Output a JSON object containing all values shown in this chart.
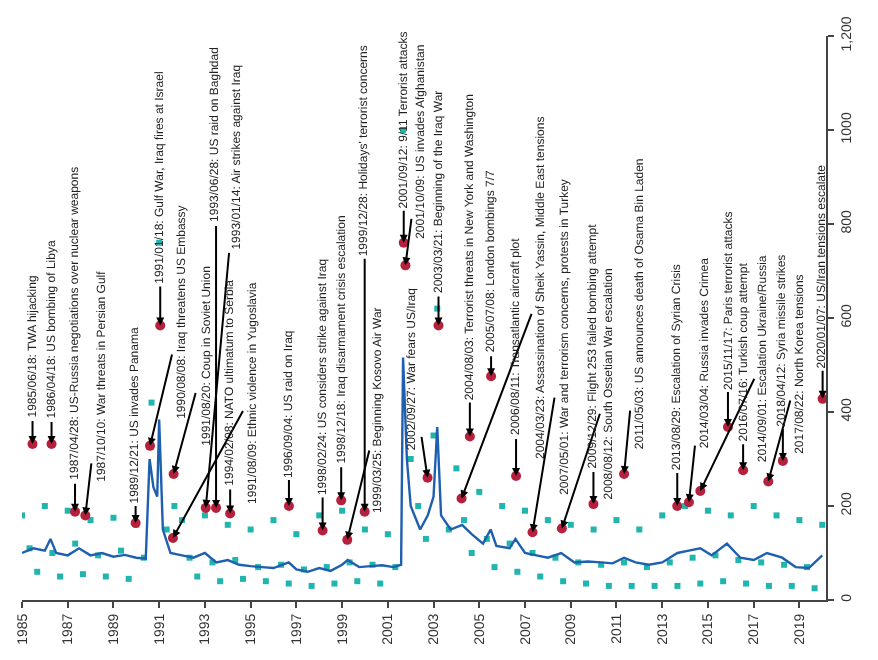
{
  "chart_data": {
    "type": "line",
    "xlim": [
      "1985-01-01",
      "2020-03-01"
    ],
    "xticks": [
      {
        "value": "1985-01-01",
        "label": "1985"
      },
      {
        "value": "1987-01-01",
        "label": "1987"
      },
      {
        "value": "1989-01-01",
        "label": "1989"
      },
      {
        "value": "1991-01-01",
        "label": "1991"
      },
      {
        "value": "1993-01-01",
        "label": "1993"
      },
      {
        "value": "1995-01-01",
        "label": "1995"
      },
      {
        "value": "1997-01-01",
        "label": "1997"
      },
      {
        "value": "1999-01-01",
        "label": "1999"
      },
      {
        "value": "2001-01-01",
        "label": "2001"
      },
      {
        "value": "2003-01-01",
        "label": "2003"
      },
      {
        "value": "2005-01-01",
        "label": "2005"
      },
      {
        "value": "2007-01-01",
        "label": "2007"
      },
      {
        "value": "2009-01-01",
        "label": "2009"
      },
      {
        "value": "2011-01-01",
        "label": "2011"
      },
      {
        "value": "2013-01-01",
        "label": "2013"
      },
      {
        "value": "2015-01-01",
        "label": "2015"
      },
      {
        "value": "2017-01-01",
        "label": "2017"
      },
      {
        "value": "2019-01-01",
        "label": "2019"
      }
    ],
    "ylim": [
      0,
      1200
    ],
    "yticks": [
      0,
      200,
      400,
      600,
      800,
      1000,
      {
        "value": 1200,
        "label": "1,200"
      }
    ],
    "series": [
      {
        "type": "scatter",
        "marker": "square",
        "color": "#20b5ad",
        "x": [
          "1985-01",
          "1985-05",
          "1985-09",
          "1986-01",
          "1986-05",
          "1986-09",
          "1987-01",
          "1987-05",
          "1987-09",
          "1988-01",
          "1988-05",
          "1988-09",
          "1989-01",
          "1989-05",
          "1989-09",
          "1990-01",
          "1990-05",
          "1990-09",
          "1991-01",
          "1991-05",
          "1991-09",
          "1992-01",
          "1992-05",
          "1992-09",
          "1993-01",
          "1993-05",
          "1993-09",
          "1994-01",
          "1994-05",
          "1994-09",
          "1995-01",
          "1995-05",
          "1995-09",
          "1996-01",
          "1996-05",
          "1996-09",
          "1997-01",
          "1997-05",
          "1997-09",
          "1998-01",
          "1998-05",
          "1998-09",
          "1999-01",
          "1999-05",
          "1999-09",
          "2000-01",
          "2000-05",
          "2000-09",
          "2001-01",
          "2001-05",
          "2001-09",
          "2002-01",
          "2002-05",
          "2002-09",
          "2003-01",
          "2003-03",
          "2003-09",
          "2004-01",
          "2004-05",
          "2004-09",
          "2005-01",
          "2005-05",
          "2005-09",
          "2006-01",
          "2006-05",
          "2006-09",
          "2007-01",
          "2007-05",
          "2007-09",
          "2008-01",
          "2008-05",
          "2008-09",
          "2009-01",
          "2009-05",
          "2009-09",
          "2010-01",
          "2010-05",
          "2010-09",
          "2011-01",
          "2011-05",
          "2011-09",
          "2012-01",
          "2012-05",
          "2012-09",
          "2013-01",
          "2013-05",
          "2013-09",
          "2014-01",
          "2014-05",
          "2014-09",
          "2015-01",
          "2015-05",
          "2015-09",
          "2016-01",
          "2016-05",
          "2016-09",
          "2017-01",
          "2017-05",
          "2017-09",
          "2018-01",
          "2018-05",
          "2018-09",
          "2019-01",
          "2019-05",
          "2019-09",
          "2020-01"
        ],
        "values": [
          180,
          110,
          60,
          200,
          100,
          50,
          190,
          120,
          55,
          170,
          95,
          50,
          175,
          105,
          45,
          160,
          90,
          420,
          760,
          150,
          200,
          170,
          90,
          50,
          180,
          80,
          40,
          160,
          85,
          45,
          150,
          70,
          40,
          170,
          75,
          35,
          140,
          65,
          30,
          180,
          70,
          35,
          190,
          80,
          40,
          150,
          75,
          35,
          140,
          70,
          1000,
          300,
          200,
          130,
          350,
          620,
          150,
          280,
          170,
          100,
          230,
          130,
          70,
          200,
          120,
          60,
          190,
          100,
          50,
          170,
          90,
          40,
          160,
          80,
          35,
          150,
          75,
          30,
          170,
          80,
          30,
          150,
          70,
          30,
          180,
          80,
          30,
          200,
          90,
          35,
          190,
          95,
          40,
          180,
          85,
          35,
          200,
          80,
          30,
          180,
          75,
          30,
          170,
          70,
          25,
          160
        ]
      },
      {
        "type": "line",
        "marker": "none",
        "line_style": "solid",
        "color": "#1f5fb0",
        "x": [
          "1985-01",
          "1985-07",
          "1986-01",
          "1986-04",
          "1986-07",
          "1987-01",
          "1987-07",
          "1988-01",
          "1988-07",
          "1989-01",
          "1989-07",
          "1990-01",
          "1990-06",
          "1990-08",
          "1990-10",
          "1990-12",
          "1991-01",
          "1991-03",
          "1991-07",
          "1992-01",
          "1992-07",
          "1993-01",
          "1993-07",
          "1994-01",
          "1994-07",
          "1995-01",
          "1995-07",
          "1996-01",
          "1996-09",
          "1997-01",
          "1997-07",
          "1998-01",
          "1998-07",
          "1999-01",
          "1999-04",
          "1999-10",
          "2000-04",
          "2000-10",
          "2001-04",
          "2001-08",
          "2001-09",
          "2001-11",
          "2002-01",
          "2002-06",
          "2002-10",
          "2003-01",
          "2003-03",
          "2003-05",
          "2003-10",
          "2004-04",
          "2004-09",
          "2005-03",
          "2005-07",
          "2005-10",
          "2006-05",
          "2006-08",
          "2007-01",
          "2007-07",
          "2008-01",
          "2008-08",
          "2009-03",
          "2009-10",
          "2010-05",
          "2010-11",
          "2011-05",
          "2011-11",
          "2012-06",
          "2013-01",
          "2013-09",
          "2014-03",
          "2014-09",
          "2015-03",
          "2015-11",
          "2016-06",
          "2017-01",
          "2017-08",
          "2018-04",
          "2018-11",
          "2019-06",
          "2020-01"
        ],
        "values": [
          100,
          110,
          105,
          130,
          100,
          95,
          110,
          95,
          100,
          92,
          96,
          90,
          88,
          300,
          240,
          220,
          384,
          150,
          100,
          95,
          90,
          100,
          80,
          85,
          75,
          72,
          70,
          68,
          80,
          65,
          60,
          68,
          62,
          75,
          85,
          70,
          72,
          74,
          70,
          75,
          516,
          300,
          200,
          150,
          180,
          220,
          368,
          180,
          150,
          160,
          140,
          120,
          150,
          115,
          110,
          130,
          100,
          95,
          90,
          100,
          80,
          82,
          80,
          78,
          90,
          80,
          75,
          80,
          100,
          105,
          110,
          95,
          120,
          90,
          85,
          100,
          90,
          70,
          68,
          95
        ]
      },
      {
        "type": "scatter",
        "marker": "circle",
        "color": "#b5203c",
        "x": [
          "1985-06-18",
          "1986-04-18",
          "1987-04-28",
          "1987-10-10",
          "1989-12-21",
          "1990-08-08",
          "1991-01-18",
          "1991-08-20",
          "1991-08-09",
          "1993-01-14",
          "1993-06-28",
          "1994-02-08",
          "1996-09-04",
          "1998-02-24",
          "1998-12-18",
          "1999-03-25",
          "1999-12-28",
          "2001-09-12",
          "2001-10-09",
          "2002-09-27",
          "2003-03-21",
          "2004-03-23",
          "2004-08-03",
          "2005-07-08",
          "2006-08-11",
          "2007-05-01",
          "2008-08-12",
          "2009-12-29",
          "2011-05-03",
          "2013-08-29",
          "2014-03-04",
          "2014-09-01",
          "2015-11-17",
          "2016-07-16",
          "2017-08-22",
          "2018-04-12",
          "2020-01-07"
        ],
        "values": [
          332,
          332,
          188,
          180,
          164,
          328,
          584,
          268,
          132,
          196,
          196,
          184,
          200,
          148,
          212,
          128,
          188,
          760,
          712,
          260,
          584,
          216,
          348,
          476,
          264,
          144,
          152,
          204,
          268,
          200,
          208,
          232,
          368,
          276,
          252,
          296,
          428
        ]
      }
    ],
    "annotations": [
      {
        "text": "1985/06/18: TWA hijacking",
        "x": "1985-06-18",
        "y": 332
      },
      {
        "text": "1986/04/18: US bombing of Libya",
        "x": "1986-04-18",
        "y": 332
      },
      {
        "text": "1987/04/28: US-Russia negotiations over nuclear weapons",
        "x": "1987-04-28",
        "y": 188
      },
      {
        "text": "1987/10/10: War threats in Persian Gulf",
        "x": "1987-10-10",
        "y": 180
      },
      {
        "text": "1989/12/21: US invades Panama",
        "x": "1989-12-21",
        "y": 164
      },
      {
        "text": "1990/08/08: Iraq threatens US Embassy",
        "x": "1990-08-08",
        "y": 328
      },
      {
        "text": "1991/01/18: Gulf War, Iraq fires at Israel",
        "x": "1991-01-18",
        "y": 584
      },
      {
        "text": "1991/08/20: Coup in Soviet Union",
        "x": "1991-08-20",
        "y": 268
      },
      {
        "text": "1991/08/09: Ethnic violence in Yugoslavia",
        "x": "1991-08-09",
        "y": 132
      },
      {
        "text": "1993/01/14: Air strikes against Iraq",
        "x": "1993-01-14",
        "y": 196
      },
      {
        "text": "1993/06/28: US raid on Baghdad",
        "x": "1993-06-28",
        "y": 196
      },
      {
        "text": "1994/02/08: NATO ultimatum to Serbia",
        "x": "1994-02-08",
        "y": 184
      },
      {
        "text": "1996/09/04: US raid on Iraq",
        "x": "1996-09-04",
        "y": 200
      },
      {
        "text": "1998/02/24: US considers strike against Iraq",
        "x": "1998-02-24",
        "y": 148
      },
      {
        "text": "1998/12/18: Iraq disarmament crisis escalation",
        "x": "1998-12-18",
        "y": 212
      },
      {
        "text": "1999/03/25: Beginning Kosovo Air War",
        "x": "1999-03-25",
        "y": 128
      },
      {
        "text": "1999/12/28: Holidays' terrorist concerns",
        "x": "1999-12-28",
        "y": 188
      },
      {
        "text": "2001/09/12: 9/11 Terrorist attacks",
        "x": "2001-09-12",
        "y": 760
      },
      {
        "text": "2001/10/09: US invades Afghanistan",
        "x": "2001-10-09",
        "y": 712
      },
      {
        "text": "2002/09/27: War fears US/Iraq",
        "x": "2002-09-27",
        "y": 260
      },
      {
        "text": "2003/03/21: Beginning of the Iraq War",
        "x": "2003-03-21",
        "y": 584
      },
      {
        "text": "2004/03/23: Assassination of Sheik Yassin, Middle East tensions",
        "x": "2004-03-23",
        "y": 216
      },
      {
        "text": "2004/08/03: Terrorist threats in New York and Washington",
        "x": "2004-08-03",
        "y": 348
      },
      {
        "text": "2005/07/08: London bombings 7/7",
        "x": "2005-07-08",
        "y": 476
      },
      {
        "text": "2006/08/11: Transatlantic aircraft plot",
        "x": "2006-08-11",
        "y": 264
      },
      {
        "text": "2007/05/01: War and terrorism concerns, protests in Turkey",
        "x": "2007-05-01",
        "y": 144
      },
      {
        "text": "2008/08/12: South Ossetian War escalation",
        "x": "2008-08-12",
        "y": 152
      },
      {
        "text": "2009/12/29: Flight 253 failed bombing attempt",
        "x": "2009-12-29",
        "y": 204
      },
      {
        "text": "2011/05/03: US announces death of Osama Bin Laden",
        "x": "2011-05-03",
        "y": 268
      },
      {
        "text": "2013/08/29: Escalation of Syrian Crisis",
        "x": "2013-08-29",
        "y": 200
      },
      {
        "text": "2014/03/04: Russia invades Crimea",
        "x": "2014-03-04",
        "y": 208
      },
      {
        "text": "2014/09/01: Escalation Ukraine/Russia",
        "x": "2014-09-01",
        "y": 232
      },
      {
        "text": "2015/11/17: Paris terrorist attacks",
        "x": "2015-11-17",
        "y": 368
      },
      {
        "text": "2016/07/16: Turkish coup attempt",
        "x": "2016-07-16",
        "y": 276
      },
      {
        "text": "2017/08/22: North Korea tensions",
        "x": "2017-08-22",
        "y": 252
      },
      {
        "text": "2018/04/12: Syria missile strikes",
        "x": "2018-04-12",
        "y": 296
      },
      {
        "text": "2020/01/07: US/Iran tensions escalate",
        "x": "2020-01-07",
        "y": 428
      }
    ]
  }
}
